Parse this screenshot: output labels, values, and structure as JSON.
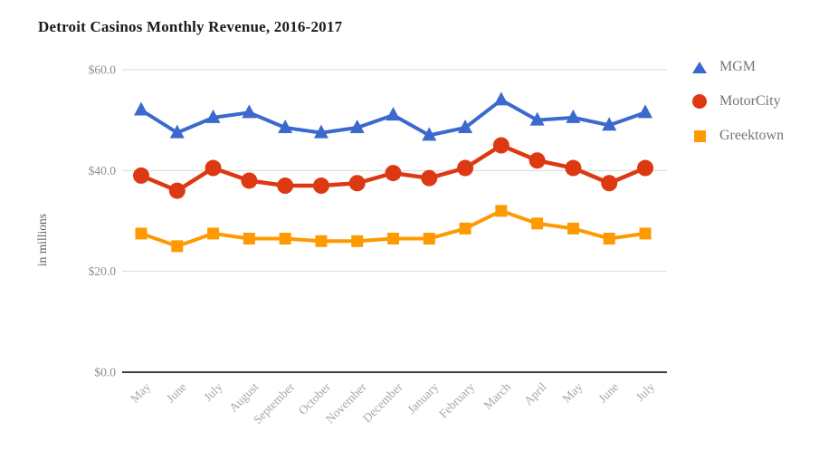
{
  "chart_data": {
    "type": "line",
    "title": "Detroit Casinos Monthly Revenue, 2016-2017",
    "xlabel": "",
    "ylabel": "in millions",
    "ylim": [
      0,
      60
    ],
    "grid": true,
    "legend_position": "right",
    "yticks": [
      {
        "value": 0,
        "label": "$0.0"
      },
      {
        "value": 20,
        "label": "$20.0"
      },
      {
        "value": 40,
        "label": "$40.0"
      },
      {
        "value": 60,
        "label": "$60.0"
      }
    ],
    "categories": [
      "May",
      "June",
      "July",
      "August",
      "September",
      "October",
      "November",
      "December",
      "January",
      "February",
      "March",
      "April",
      "May",
      "June",
      "July"
    ],
    "series": [
      {
        "name": "MGM",
        "marker": "triangle",
        "color": "#3b69cd",
        "values": [
          52,
          47.5,
          50.5,
          51.5,
          48.5,
          47.5,
          48.5,
          51,
          47,
          48.5,
          54,
          50,
          50.5,
          49,
          51.5
        ]
      },
      {
        "name": "MotorCity",
        "marker": "circle",
        "color": "#dc3912",
        "values": [
          39,
          36,
          40.5,
          38,
          37,
          37,
          37.5,
          39.5,
          38.5,
          40.5,
          45,
          42,
          40.5,
          37.5,
          40.5
        ]
      },
      {
        "name": "Greektown",
        "marker": "square",
        "color": "#ff9900",
        "values": [
          27.5,
          25,
          27.5,
          26.5,
          26.5,
          26,
          26,
          26.5,
          26.5,
          28.5,
          32,
          29.5,
          28.5,
          26.5,
          27.5
        ]
      }
    ],
    "colors": {
      "gridline": "#dadada",
      "axis_line": "#3f3f3f",
      "title_text": "#1b1b1b",
      "tick_text": "#8f8f8f",
      "category_text": "#a6a6a6",
      "legend_text": "#757575",
      "ylabel_text": "#5a5a5a"
    }
  }
}
